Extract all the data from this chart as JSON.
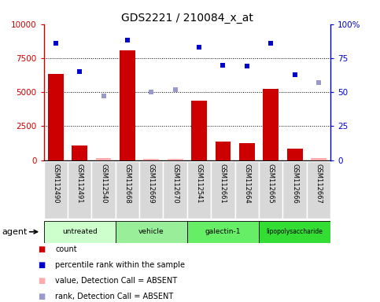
{
  "title": "GDS2221 / 210084_x_at",
  "samples": [
    "GSM112490",
    "GSM112491",
    "GSM112540",
    "GSM112668",
    "GSM112669",
    "GSM112670",
    "GSM112541",
    "GSM112661",
    "GSM112664",
    "GSM112665",
    "GSM112666",
    "GSM112667"
  ],
  "groups": [
    {
      "label": "untreated",
      "indices": [
        0,
        1,
        2
      ]
    },
    {
      "label": "vehicle",
      "indices": [
        3,
        4,
        5
      ]
    },
    {
      "label": "galectin-1",
      "indices": [
        6,
        7,
        8
      ]
    },
    {
      "label": "lipopolysaccharide",
      "indices": [
        9,
        10,
        11
      ]
    }
  ],
  "group_colors": [
    "#ccffcc",
    "#99ee99",
    "#66ee66",
    "#33dd33"
  ],
  "count_values": [
    6350,
    1100,
    null,
    8050,
    null,
    null,
    4350,
    1350,
    1250,
    5250,
    850,
    null
  ],
  "count_absent_values": [
    null,
    null,
    150,
    null,
    100,
    100,
    null,
    null,
    null,
    null,
    null,
    150
  ],
  "percentile_values": [
    86,
    65,
    null,
    88,
    null,
    null,
    83,
    70,
    69,
    86,
    63,
    null
  ],
  "percentile_absent_values": [
    null,
    null,
    47,
    null,
    50,
    52,
    null,
    null,
    null,
    null,
    null,
    57
  ],
  "ylim_left": [
    0,
    10000
  ],
  "ylim_right": [
    0,
    100
  ],
  "yticks_left": [
    0,
    2500,
    5000,
    7500,
    10000
  ],
  "ytick_labels_left": [
    "0",
    "2500",
    "5000",
    "7500",
    "10000"
  ],
  "ytick_labels_right": [
    "0",
    "25",
    "50",
    "75",
    "100%"
  ],
  "bar_color": "#cc0000",
  "bar_absent_color": "#ffaaaa",
  "dot_color": "#0000cc",
  "dot_absent_color": "#9999cc",
  "bg_color": "#ffffff",
  "agent_label": "agent",
  "legend_items": [
    {
      "color": "#cc0000",
      "label": "count"
    },
    {
      "color": "#0000cc",
      "label": "percentile rank within the sample"
    },
    {
      "color": "#ffaaaa",
      "label": "value, Detection Call = ABSENT"
    },
    {
      "color": "#9999cc",
      "label": "rank, Detection Call = ABSENT"
    }
  ]
}
